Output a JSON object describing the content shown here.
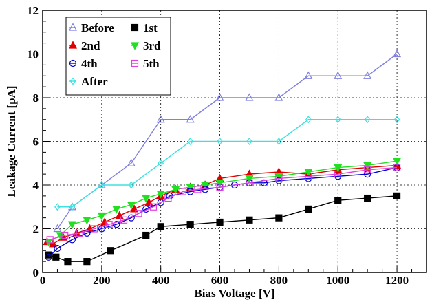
{
  "chart_data": {
    "type": "line",
    "title": "",
    "xlabel": "Bias Voltage [V]",
    "ylabel": "Leakage Current [pA]",
    "xlim": [
      0,
      1300
    ],
    "ylim": [
      0,
      12
    ],
    "xticks": [
      0,
      200,
      400,
      600,
      800,
      1000,
      1200
    ],
    "yticks": [
      0,
      2,
      4,
      6,
      8,
      10,
      12
    ],
    "grid": true,
    "legend_position": "top-left",
    "series": [
      {
        "name": "Before",
        "color": "#8080e0",
        "marker": "triangle-up-open",
        "x": [
          50,
          100,
          200,
          300,
          400,
          500,
          600,
          700,
          800,
          900,
          1000,
          1100,
          1200
        ],
        "y": [
          2,
          3,
          4,
          5,
          7,
          7,
          8,
          8,
          8,
          9,
          9,
          9,
          10
        ]
      },
      {
        "name": "1st",
        "color": "#000000",
        "marker": "square-filled",
        "x": [
          20,
          45,
          85,
          150,
          230,
          350,
          400,
          500,
          600,
          700,
          800,
          900,
          1000,
          1100,
          1200
        ],
        "y": [
          0.8,
          0.7,
          0.5,
          0.5,
          1.0,
          1.7,
          2.1,
          2.2,
          2.3,
          2.4,
          2.5,
          2.9,
          3.3,
          3.4,
          3.5
        ]
      },
      {
        "name": "2nd",
        "color": "#e00000",
        "marker": "triangle-up-filled",
        "x": [
          15,
          35,
          70,
          115,
          160,
          210,
          260,
          310,
          360,
          400,
          450,
          500,
          550,
          600,
          700,
          800,
          900,
          1000,
          1100,
          1200
        ],
        "y": [
          1.4,
          1.3,
          1.6,
          1.8,
          2.0,
          2.3,
          2.6,
          2.9,
          3.2,
          3.5,
          3.8,
          3.9,
          4.0,
          4.3,
          4.5,
          4.6,
          4.5,
          4.7,
          4.8,
          4.9
        ]
      },
      {
        "name": "3rd",
        "color": "#20e020",
        "marker": "triangle-down-filled",
        "x": [
          20,
          60,
          100,
          150,
          200,
          250,
          300,
          350,
          400,
          450,
          500,
          550,
          600,
          700,
          800,
          900,
          1000,
          1100,
          1200
        ],
        "y": [
          1.4,
          1.7,
          2.2,
          2.4,
          2.6,
          2.9,
          3.1,
          3.4,
          3.6,
          3.8,
          3.9,
          4.0,
          4.1,
          4.3,
          4.4,
          4.6,
          4.8,
          4.9,
          5.1
        ]
      },
      {
        "name": "4th",
        "color": "#0000d0",
        "marker": "circle-open",
        "x": [
          20,
          50,
          100,
          150,
          200,
          250,
          300,
          350,
          400,
          430,
          500,
          550,
          600,
          650,
          700,
          750,
          800,
          900,
          1000,
          1100,
          1200
        ],
        "y": [
          0.7,
          1.1,
          1.5,
          1.8,
          2.0,
          2.2,
          2.5,
          2.9,
          3.2,
          3.5,
          3.7,
          3.8,
          3.9,
          4.0,
          4.1,
          4.1,
          4.2,
          4.3,
          4.4,
          4.5,
          4.8
        ]
      },
      {
        "name": "5th",
        "color": "#e040e0",
        "marker": "square-open",
        "x": [
          25,
          75,
          125,
          175,
          225,
          275,
          325,
          375,
          425,
          475,
          525,
          600,
          700,
          800,
          900,
          1000,
          1100,
          1200
        ],
        "y": [
          1.5,
          1.7,
          1.8,
          2.0,
          2.2,
          2.4,
          2.7,
          3.0,
          3.4,
          3.7,
          3.8,
          3.9,
          4.1,
          4.3,
          4.4,
          4.5,
          4.7,
          4.8
        ]
      },
      {
        "name": "After",
        "color": "#40e0e0",
        "marker": "diamond-open",
        "x": [
          50,
          100,
          200,
          300,
          400,
          500,
          600,
          700,
          800,
          900,
          1000,
          1100,
          1200
        ],
        "y": [
          3,
          3,
          4,
          4,
          5,
          6,
          6,
          6,
          6,
          7,
          7,
          7,
          7
        ]
      }
    ]
  }
}
